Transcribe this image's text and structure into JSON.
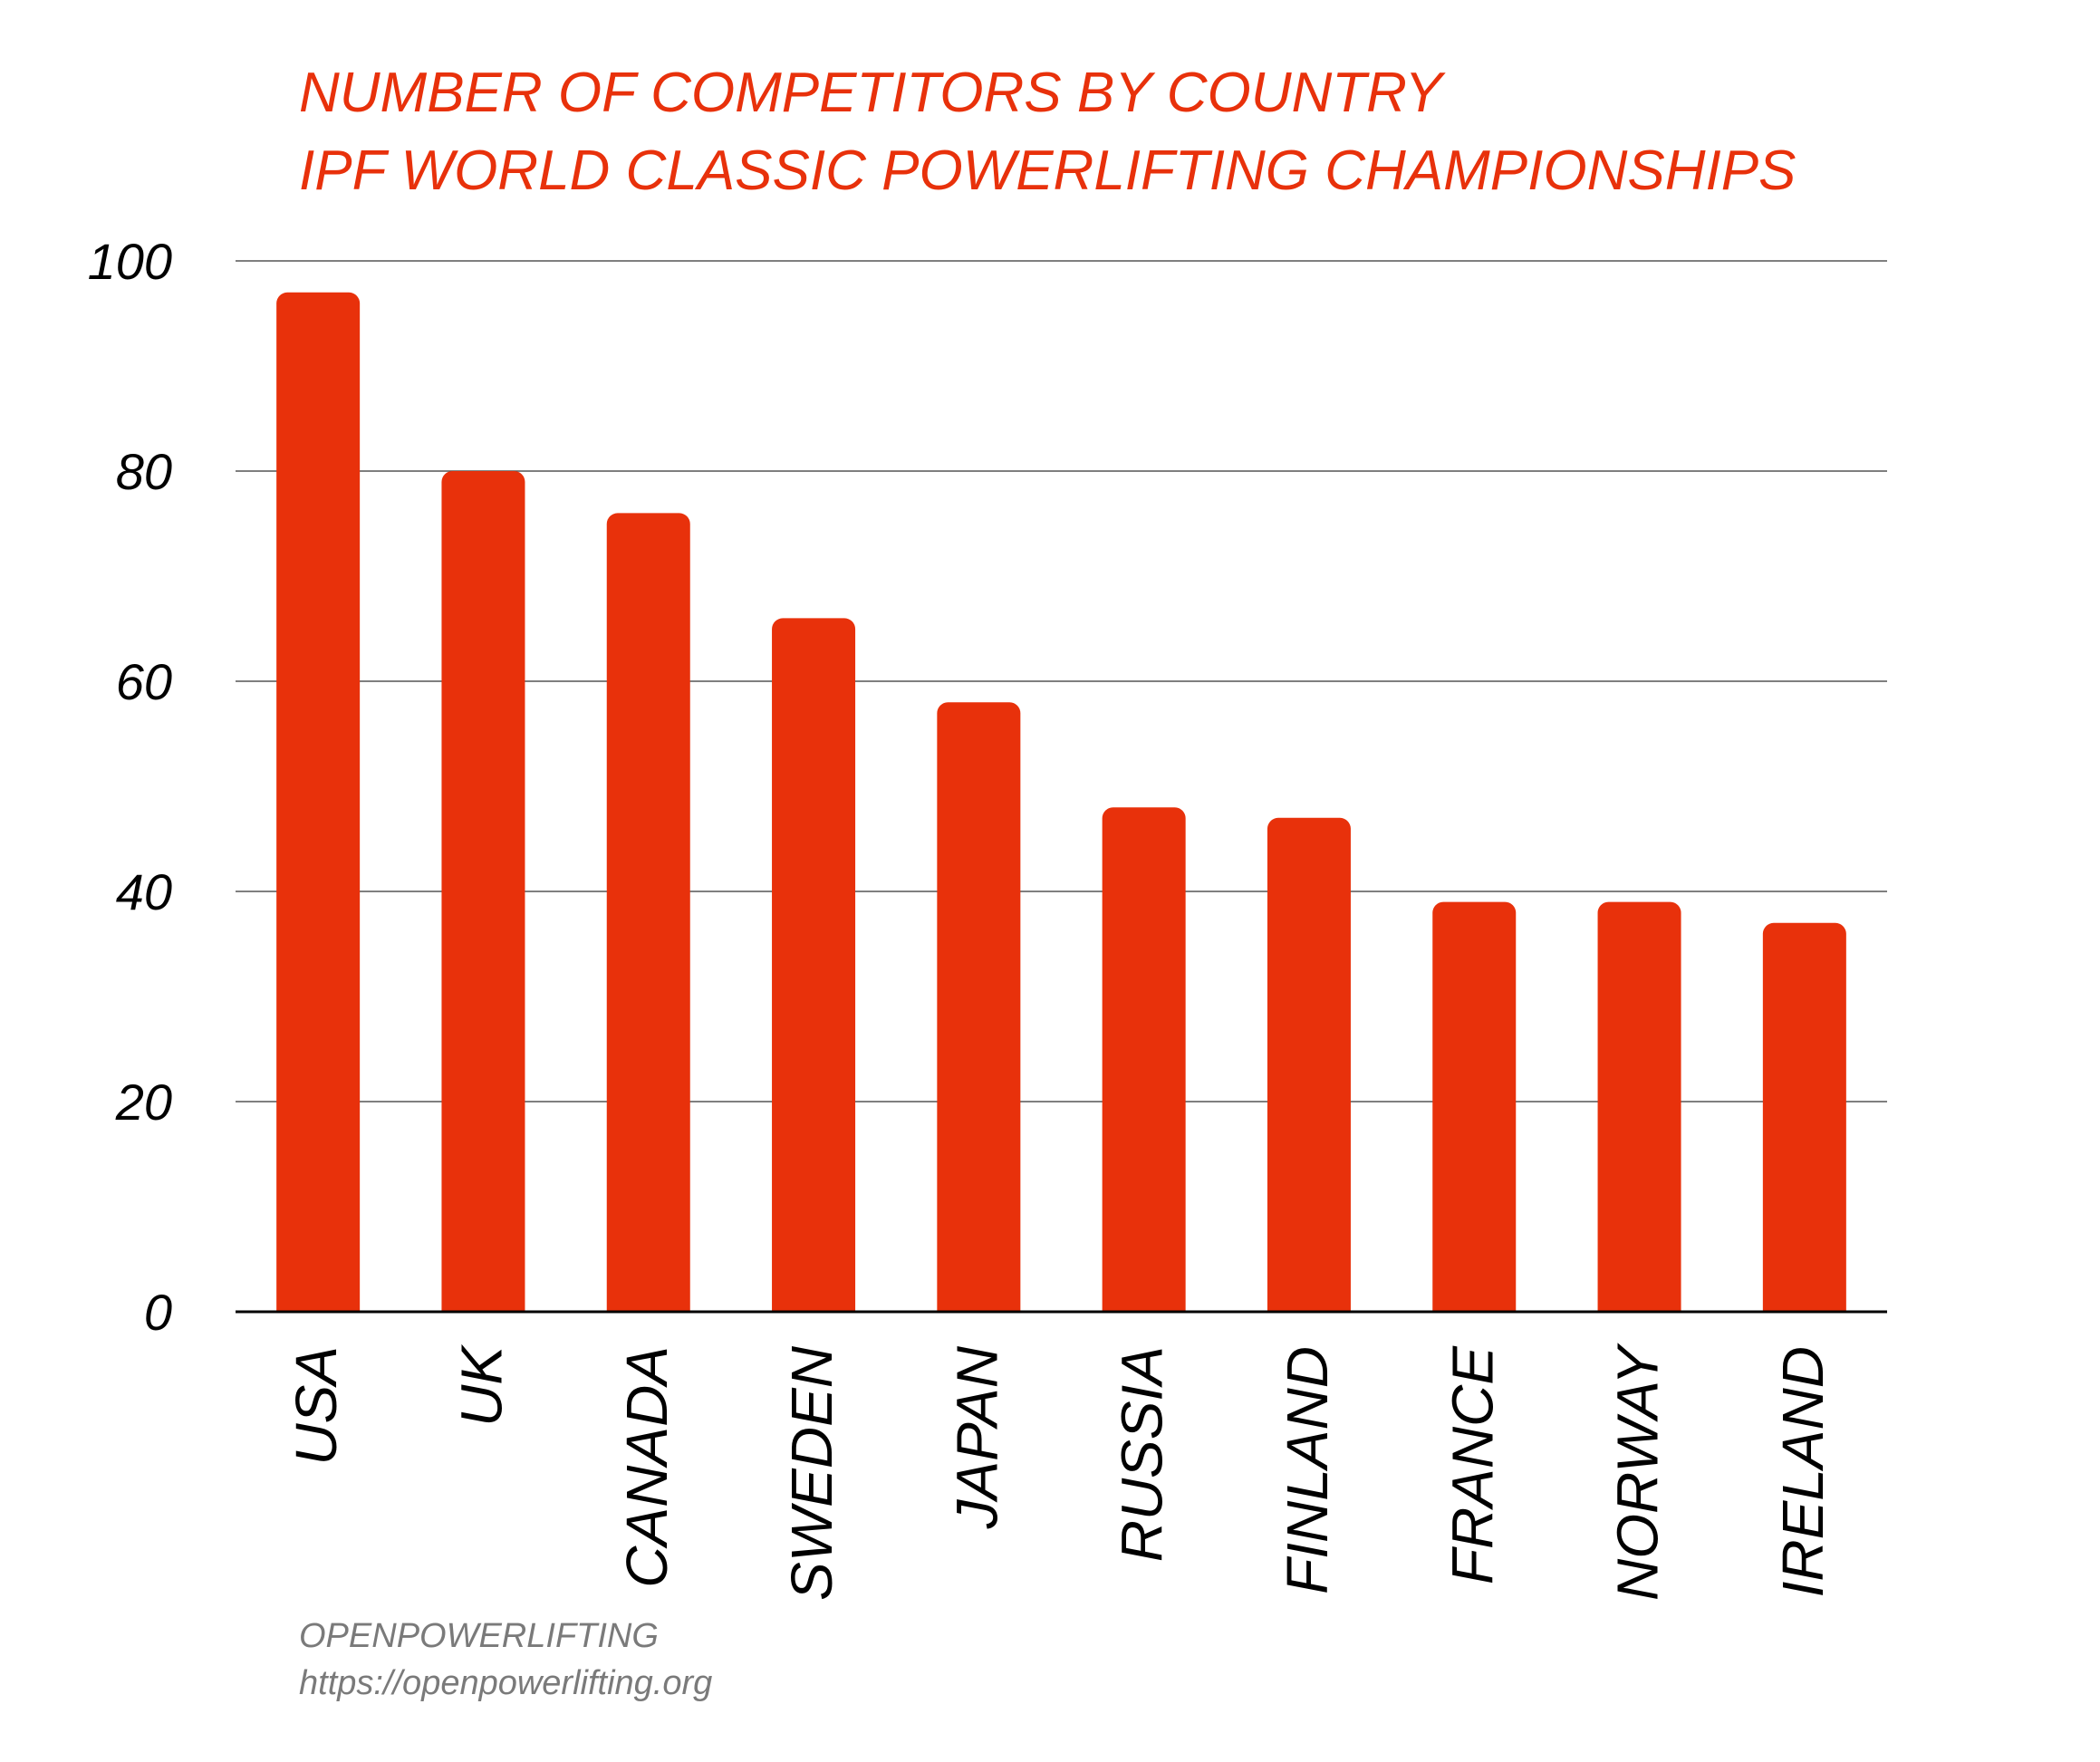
{
  "chart_data": {
    "type": "bar",
    "title_lines": [
      "NUMBER OF COMPETITORS BY COUNTRY",
      "IPF  WORLD CLASSIC POWERLIFTING CHAMPIONSHIPS"
    ],
    "categories": [
      "USA",
      "UK",
      "CANADA",
      "SWEDEN",
      "JAPAN",
      "RUSSIA",
      "FINLAND",
      "FRANCE",
      "NORWAY",
      "IRELAND"
    ],
    "values": [
      97,
      80,
      76,
      66,
      58,
      48,
      47,
      39,
      39,
      37
    ],
    "ylim": [
      0,
      100
    ],
    "yticks": [
      "0",
      "20",
      "40",
      "60",
      "80",
      "100"
    ],
    "grid": true,
    "legend": "none",
    "colors": {
      "bar": "#e8310b",
      "title": "#e8310b",
      "gridline": "#555555",
      "axis": "#000000",
      "source_text": "#7a7a7a"
    }
  },
  "source": {
    "name": "OPENPOWERLIFTING",
    "url": "https://openpowerlifting.org"
  }
}
